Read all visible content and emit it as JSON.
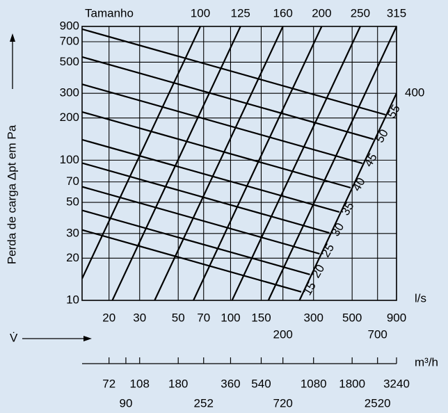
{
  "chart_data": {
    "type": "line",
    "size_title": "Tamanho",
    "y_label": "Perda de carga Δpt em Pa",
    "x_label": "V̇",
    "x_unit": "l/s",
    "x2_unit": "m³/h",
    "log_x": true,
    "log_y": true,
    "grid": true,
    "color": "#000000",
    "xlim": [
      14,
      900
    ],
    "xticks": [
      20,
      30,
      50,
      70,
      100,
      150,
      200,
      300,
      500,
      700,
      900
    ],
    "ylim": [
      10,
      900
    ],
    "yticks": [
      10,
      20,
      30,
      50,
      70,
      100,
      200,
      300,
      500,
      700,
      900
    ],
    "x2lim": [
      50.4,
      3240
    ],
    "x2ticks": [
      72,
      90,
      108,
      180,
      252,
      360,
      540,
      720,
      1080,
      1800,
      2520,
      3240
    ],
    "size_lines": [
      {
        "name": "100",
        "x": [
          14,
          67
        ],
        "y": [
          14.3,
          900
        ]
      },
      {
        "name": "125",
        "x": [
          20.9,
          114
        ],
        "y": [
          10,
          900
        ]
      },
      {
        "name": "160",
        "x": [
          36.6,
          200
        ],
        "y": [
          10,
          900
        ]
      },
      {
        "name": "200",
        "x": [
          61.2,
          334
        ],
        "y": [
          10,
          900
        ]
      },
      {
        "name": "250",
        "x": [
          102,
          557
        ],
        "y": [
          10,
          900
        ]
      },
      {
        "name": "315",
        "x": [
          165,
          900
        ],
        "y": [
          10,
          900
        ]
      },
      {
        "name": "400",
        "x": [
          249,
          900
        ],
        "y": [
          10,
          300
        ]
      }
    ],
    "velocity_lines": [
      {
        "name": "15",
        "x": [
          14,
          255
        ],
        "y": [
          31.8,
          11.5
        ]
      },
      {
        "name": "20",
        "x": [
          14,
          286
        ],
        "y": [
          43.9,
          15.3
        ]
      },
      {
        "name": "25",
        "x": [
          14,
          325
        ],
        "y": [
          64.6,
          21.5
        ]
      },
      {
        "name": "30",
        "x": [
          14,
          370
        ],
        "y": [
          95.4,
          30.3
        ]
      },
      {
        "name": "35",
        "x": [
          14,
          422
        ],
        "y": [
          140,
          42.7
        ]
      },
      {
        "name": "40",
        "x": [
          14,
          490
        ],
        "y": [
          221,
          63.6
        ]
      },
      {
        "name": "45",
        "x": [
          14,
          573
        ],
        "y": [
          348,
          94.9
        ]
      },
      {
        "name": "50",
        "x": [
          14,
          665
        ],
        "y": [
          545,
          141
        ]
      },
      {
        "name": "55",
        "x": [
          14,
          778
        ],
        "y": [
          861,
          211
        ]
      }
    ]
  }
}
